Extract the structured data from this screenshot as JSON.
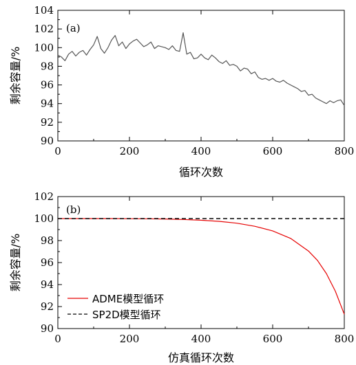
{
  "chart_data": [
    {
      "type": "line",
      "panel_label": "(a)",
      "xlabel": "循环次数",
      "ylabel": "剩余容量/%",
      "xlim": [
        0,
        800
      ],
      "ylim": [
        90,
        104
      ],
      "xticks": [
        "0",
        "200",
        "400",
        "600",
        "800"
      ],
      "yticks": [
        "90",
        "92",
        "94",
        "96",
        "98",
        "100",
        "102",
        "104"
      ],
      "grid": false,
      "series": [
        {
          "color": "#555555",
          "style": "solid",
          "x": [
            0,
            10,
            20,
            30,
            40,
            50,
            60,
            70,
            80,
            90,
            100,
            110,
            120,
            130,
            140,
            150,
            160,
            170,
            180,
            190,
            200,
            210,
            220,
            230,
            240,
            250,
            260,
            270,
            280,
            290,
            300,
            310,
            320,
            330,
            340,
            350,
            360,
            370,
            380,
            390,
            400,
            410,
            420,
            430,
            440,
            450,
            460,
            470,
            480,
            490,
            500,
            510,
            520,
            530,
            540,
            550,
            560,
            570,
            580,
            590,
            600,
            610,
            620,
            630,
            640,
            650,
            660,
            670,
            680,
            690,
            700,
            710,
            720,
            730,
            740,
            750,
            760,
            770,
            780,
            790,
            800
          ],
          "y": [
            99.2,
            99.0,
            98.6,
            99.3,
            99.6,
            99.1,
            99.5,
            99.7,
            99.2,
            99.8,
            100.3,
            101.2,
            99.9,
            99.4,
            100.0,
            100.8,
            101.3,
            100.2,
            100.6,
            99.9,
            100.4,
            100.7,
            100.9,
            100.5,
            100.1,
            100.3,
            100.6,
            99.9,
            100.2,
            100.1,
            100.0,
            99.8,
            100.2,
            99.7,
            99.6,
            101.6,
            99.3,
            99.5,
            98.8,
            98.9,
            99.3,
            98.9,
            98.7,
            99.2,
            98.9,
            98.5,
            98.3,
            98.6,
            98.1,
            98.2,
            98.0,
            97.5,
            97.8,
            97.7,
            97.2,
            97.4,
            96.8,
            96.6,
            96.7,
            96.5,
            96.7,
            96.4,
            96.3,
            96.5,
            96.2,
            96.0,
            95.8,
            95.6,
            95.3,
            95.4,
            94.9,
            95.0,
            94.6,
            94.4,
            94.2,
            94.0,
            94.3,
            94.1,
            94.3,
            94.4,
            93.8
          ]
        }
      ]
    },
    {
      "type": "line",
      "panel_label": "(b)",
      "xlabel": "仿真循环次数",
      "ylabel": "剩余容量/%",
      "xlim": [
        0,
        800
      ],
      "ylim": [
        90,
        102
      ],
      "xticks": [
        "0",
        "200",
        "400",
        "600",
        "800"
      ],
      "yticks": [
        "90",
        "92",
        "94",
        "96",
        "98",
        "100",
        "102"
      ],
      "grid": false,
      "legend": "bottom-left",
      "series": [
        {
          "name": "ADME模型循环",
          "color": "#e60000",
          "style": "solid",
          "x": [
            0,
            50,
            100,
            150,
            200,
            250,
            300,
            350,
            400,
            450,
            500,
            550,
            600,
            650,
            700,
            725,
            750,
            775,
            800
          ],
          "y": [
            100.0,
            100.0,
            100.0,
            100.0,
            99.99,
            99.98,
            99.96,
            99.92,
            99.85,
            99.75,
            99.58,
            99.3,
            98.88,
            98.2,
            97.05,
            96.2,
            95.0,
            93.4,
            91.3
          ]
        },
        {
          "name": "SP2D模型循环",
          "color": "#000000",
          "style": "dashed",
          "x": [
            0,
            800
          ],
          "y": [
            100.0,
            100.0
          ]
        }
      ]
    }
  ]
}
